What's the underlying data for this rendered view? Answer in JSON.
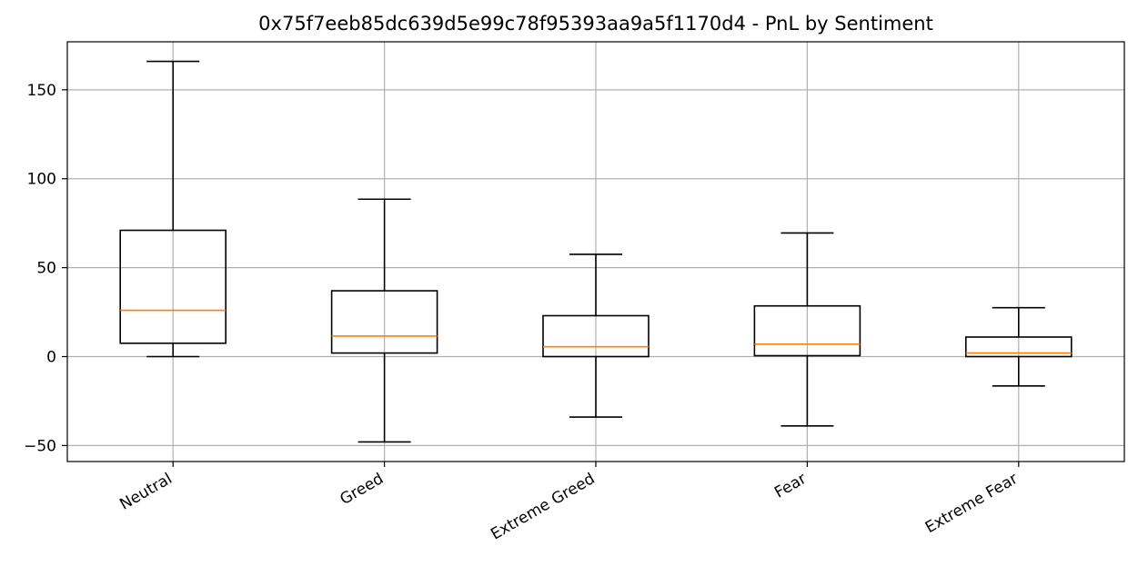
{
  "chart_data": {
    "type": "box",
    "title": "0x75f7eeb85dc639d5e99c78f95393aa9a5f1170d4 - PnL by Sentiment",
    "xlabel": "",
    "ylabel": "",
    "ylim": [
      -59,
      177
    ],
    "yticks": [
      -50,
      0,
      50,
      100,
      150
    ],
    "ytick_labels": [
      "−50",
      "0",
      "50",
      "100",
      "150"
    ],
    "grid": true,
    "categories": [
      "Neutral",
      "Greed",
      "Extreme Greed",
      "Fear",
      "Extreme Fear"
    ],
    "boxes": [
      {
        "whislo": 0,
        "q1": 7.5,
        "med": 26,
        "q3": 71,
        "whishi": 166
      },
      {
        "whislo": -48,
        "q1": 2,
        "med": 11.5,
        "q3": 37,
        "whishi": 88.5
      },
      {
        "whislo": -34,
        "q1": 0,
        "med": 5.5,
        "q3": 23,
        "whishi": 57.5
      },
      {
        "whislo": -39,
        "q1": 0.5,
        "med": 7,
        "q3": 28.5,
        "whishi": 69.5
      },
      {
        "whislo": -16.5,
        "q1": 0,
        "med": 2,
        "q3": 11,
        "whishi": 27.5
      }
    ],
    "colors": {
      "box": "#000000",
      "median": "#ff7f0e",
      "grid": "#b0b0b0"
    }
  }
}
